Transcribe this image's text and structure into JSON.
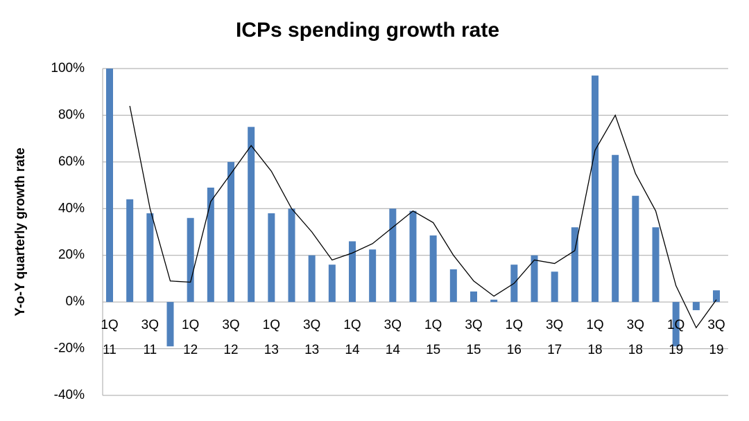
{
  "chart_data": {
    "type": "bar",
    "title": "ICPs spending growth rate",
    "y_label": "Y-o-Y quarterly growth rate",
    "categories": [
      "1Q 11",
      null,
      "3Q 11",
      null,
      "1Q 12",
      null,
      "3Q 12",
      null,
      "1Q 13",
      null,
      "3Q 13",
      null,
      "1Q 14",
      null,
      "3Q 14",
      null,
      "1Q 15",
      null,
      "3Q 15",
      null,
      "1Q 16",
      null,
      "3Q 17",
      null,
      "1Q 18",
      null,
      "3Q 18",
      null,
      "1Q 19",
      null,
      "3Q 19"
    ],
    "series": [
      {
        "type": "bar",
        "color": "#4f81bd",
        "values": [
          100,
          44,
          38,
          -19,
          36,
          49,
          60,
          75,
          38,
          40,
          20,
          16,
          26,
          22.5,
          40,
          39,
          28.5,
          14,
          4.5,
          1,
          16,
          20,
          13,
          32,
          97,
          63,
          45.5,
          32,
          -19,
          -3.5,
          5
        ]
      },
      {
        "type": "line",
        "color": "#000000",
        "values": [
          null,
          84,
          40,
          9,
          8.5,
          43,
          55,
          67,
          56,
          40,
          30,
          18,
          21,
          25,
          32,
          39,
          34,
          20,
          9,
          2.5,
          8,
          18,
          16.5,
          22,
          65,
          80,
          55,
          39,
          7,
          -11,
          1
        ]
      }
    ],
    "ylim": [
      -40,
      100
    ],
    "yticks": [
      {
        "value": -40,
        "label": "-40%"
      },
      {
        "value": -20,
        "label": "-20%"
      },
      {
        "value": 0,
        "label": "0%"
      },
      {
        "value": 20,
        "label": "20%"
      },
      {
        "value": 40,
        "label": "40%"
      },
      {
        "value": 60,
        "label": "60%"
      },
      {
        "value": 80,
        "label": "80%"
      },
      {
        "value": 100,
        "label": "100%"
      }
    ],
    "grid": true
  }
}
